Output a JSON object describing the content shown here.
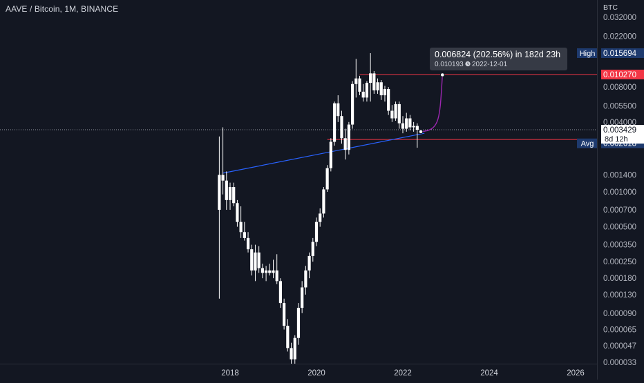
{
  "header": {
    "title": "AAVE / Bitcoin, 1M, BINANCE"
  },
  "price_axis": {
    "unit": "BTC",
    "ticks": [
      "0.032000",
      "0.022000",
      "0.015694",
      "0.010270",
      "0.008000",
      "0.005500",
      "0.004000",
      "0.003429",
      "0.002827",
      "0.002618",
      "0.001400",
      "0.001000",
      "0.000700",
      "0.000500",
      "0.000350",
      "0.000250",
      "0.000180",
      "0.000130",
      "0.000090",
      "0.000065",
      "0.000047",
      "0.000033"
    ],
    "markers": {
      "high": {
        "label": "High",
        "value": "0.015694",
        "color": "#1e3a6e"
      },
      "target": {
        "value": "0.010270",
        "color": "#f23645"
      },
      "last": {
        "value": "0.003429",
        "countdown": "8d 12h",
        "color": "#ffffff"
      },
      "support": {
        "value": "0.002827",
        "color": "#f23645"
      },
      "avg": {
        "label": "Avg",
        "value": "0.002618",
        "color": "#1e3a6e"
      }
    }
  },
  "time_axis": {
    "ticks": [
      "2018",
      "2020",
      "2022",
      "2024",
      "2026"
    ]
  },
  "projection_tooltip": {
    "line1": "0.006824 (202.56%) in 182d 23h",
    "line2_value": "0.010193",
    "line2_date": "2022-12-01",
    "clock_icon": "clock-icon"
  },
  "colors": {
    "background": "#131722",
    "candle": "#ffffff",
    "trendline": "#2962ff",
    "horizontal_line": "#f23645",
    "projection_curve": "#9c27b0"
  },
  "chart_data": {
    "type": "candlestick",
    "title": "AAVE / Bitcoin, 1M, BINANCE",
    "ylabel": "BTC",
    "y_scale": "log",
    "ylim": [
      3.3e-05,
      0.032
    ],
    "xlim": [
      "2016-06",
      "2026-06"
    ],
    "candles": [
      {
        "t": "2017-10",
        "o": 0.0007,
        "h": 0.003,
        "l": 0.00012,
        "c": 0.0014
      },
      {
        "t": "2017-11",
        "o": 0.0014,
        "h": 0.0036,
        "l": 0.00095,
        "c": 0.00125
      },
      {
        "t": "2017-12",
        "o": 0.00125,
        "h": 0.0015,
        "l": 0.0007,
        "c": 0.00085
      },
      {
        "t": "2018-01",
        "o": 0.00085,
        "h": 0.0012,
        "l": 0.0007,
        "c": 0.0011
      },
      {
        "t": "2018-02",
        "o": 0.0011,
        "h": 0.0012,
        "l": 0.00075,
        "c": 0.0008
      },
      {
        "t": "2018-03",
        "o": 0.0008,
        "h": 0.00085,
        "l": 0.0005,
        "c": 0.00055
      },
      {
        "t": "2018-04",
        "o": 0.00055,
        "h": 0.00075,
        "l": 0.0004,
        "c": 0.00045
      },
      {
        "t": "2018-05",
        "o": 0.00045,
        "h": 0.00055,
        "l": 0.00038,
        "c": 0.0004
      },
      {
        "t": "2018-06",
        "o": 0.0004,
        "h": 0.00045,
        "l": 0.0003,
        "c": 0.00032
      },
      {
        "t": "2018-07",
        "o": 0.00032,
        "h": 0.00035,
        "l": 0.00019,
        "c": 0.00021
      },
      {
        "t": "2018-08",
        "o": 0.00021,
        "h": 0.00035,
        "l": 0.00017,
        "c": 0.0003
      },
      {
        "t": "2018-09",
        "o": 0.0003,
        "h": 0.00034,
        "l": 0.0002,
        "c": 0.00022
      },
      {
        "t": "2018-10",
        "o": 0.00022,
        "h": 0.00024,
        "l": 0.00018,
        "c": 0.0002
      },
      {
        "t": "2018-11",
        "o": 0.0002,
        "h": 0.00023,
        "l": 0.00017,
        "c": 0.00021
      },
      {
        "t": "2018-12",
        "o": 0.00021,
        "h": 0.00024,
        "l": 0.00019,
        "c": 0.0002
      },
      {
        "t": "2019-01",
        "o": 0.0002,
        "h": 0.00026,
        "l": 0.00018,
        "c": 0.00021
      },
      {
        "t": "2019-02",
        "o": 0.00021,
        "h": 0.00029,
        "l": 0.00016,
        "c": 0.00017
      },
      {
        "t": "2019-03",
        "o": 0.00017,
        "h": 0.00018,
        "l": 0.0001,
        "c": 0.00011
      },
      {
        "t": "2019-04",
        "o": 0.00011,
        "h": 0.00012,
        "l": 6.5e-05,
        "c": 7e-05
      },
      {
        "t": "2019-05",
        "o": 7e-05,
        "h": 8e-05,
        "l": 4.2e-05,
        "c": 4.5e-05
      },
      {
        "t": "2019-06",
        "o": 4.5e-05,
        "h": 5e-05,
        "l": 3.3e-05,
        "c": 3.6e-05
      },
      {
        "t": "2019-07",
        "o": 3.6e-05,
        "h": 5.8e-05,
        "l": 3.3e-05,
        "c": 5.5e-05
      },
      {
        "t": "2019-08",
        "o": 5.5e-05,
        "h": 0.00011,
        "l": 4.8e-05,
        "c": 0.0001
      },
      {
        "t": "2019-09",
        "o": 0.0001,
        "h": 0.00017,
        "l": 9e-05,
        "c": 0.00015
      },
      {
        "t": "2019-10",
        "o": 0.00015,
        "h": 0.00023,
        "l": 0.00013,
        "c": 0.00021
      },
      {
        "t": "2019-11",
        "o": 0.00021,
        "h": 0.0003,
        "l": 0.00018,
        "c": 0.00028
      },
      {
        "t": "2019-12",
        "o": 0.00028,
        "h": 0.0004,
        "l": 0.00025,
        "c": 0.00037
      },
      {
        "t": "2020-01",
        "o": 0.00037,
        "h": 0.0006,
        "l": 0.00034,
        "c": 0.00055
      },
      {
        "t": "2020-02",
        "o": 0.00055,
        "h": 0.00072,
        "l": 0.0005,
        "c": 0.00065
      },
      {
        "t": "2020-03",
        "o": 0.00065,
        "h": 0.0011,
        "l": 0.0006,
        "c": 0.00105
      },
      {
        "t": "2020-04",
        "o": 0.00105,
        "h": 0.0017,
        "l": 0.001,
        "c": 0.0016
      },
      {
        "t": "2020-05",
        "o": 0.0016,
        "h": 0.0029,
        "l": 0.0015,
        "c": 0.0027
      },
      {
        "t": "2020-06",
        "o": 0.0027,
        "h": 0.006,
        "l": 0.0025,
        "c": 0.0058
      },
      {
        "t": "2020-07",
        "o": 0.0058,
        "h": 0.0068,
        "l": 0.004,
        "c": 0.0045
      },
      {
        "t": "2020-08",
        "o": 0.0045,
        "h": 0.005,
        "l": 0.0026,
        "c": 0.0029
      },
      {
        "t": "2020-09",
        "o": 0.0029,
        "h": 0.0035,
        "l": 0.0019,
        "c": 0.0023
      },
      {
        "t": "2020-10",
        "o": 0.0023,
        "h": 0.004,
        "l": 0.0021,
        "c": 0.0038
      },
      {
        "t": "2020-11",
        "o": 0.0038,
        "h": 0.009,
        "l": 0.0035,
        "c": 0.0085
      },
      {
        "t": "2020-12",
        "o": 0.0085,
        "h": 0.014,
        "l": 0.0065,
        "c": 0.0095
      },
      {
        "t": "2021-01",
        "o": 0.0095,
        "h": 0.01,
        "l": 0.0068,
        "c": 0.0073
      },
      {
        "t": "2021-02",
        "o": 0.0073,
        "h": 0.0085,
        "l": 0.006,
        "c": 0.0065
      },
      {
        "t": "2021-03",
        "o": 0.0065,
        "h": 0.009,
        "l": 0.006,
        "c": 0.0087
      },
      {
        "t": "2021-04",
        "o": 0.0087,
        "h": 0.015694,
        "l": 0.006,
        "c": 0.0105
      },
      {
        "t": "2021-05",
        "o": 0.0105,
        "h": 0.011,
        "l": 0.007,
        "c": 0.0075
      },
      {
        "t": "2021-06",
        "o": 0.0075,
        "h": 0.0095,
        "l": 0.007,
        "c": 0.0088
      },
      {
        "t": "2021-07",
        "o": 0.0088,
        "h": 0.0092,
        "l": 0.0062,
        "c": 0.0068
      },
      {
        "t": "2021-08",
        "o": 0.0068,
        "h": 0.0082,
        "l": 0.006,
        "c": 0.0077
      },
      {
        "t": "2021-09",
        "o": 0.0077,
        "h": 0.008,
        "l": 0.0046,
        "c": 0.005
      },
      {
        "t": "2021-10",
        "o": 0.005,
        "h": 0.0056,
        "l": 0.004,
        "c": 0.0043
      },
      {
        "t": "2021-11",
        "o": 0.0043,
        "h": 0.006,
        "l": 0.0041,
        "c": 0.0057
      },
      {
        "t": "2021-12",
        "o": 0.0057,
        "h": 0.006,
        "l": 0.0035,
        "c": 0.0039
      },
      {
        "t": "2022-01",
        "o": 0.0039,
        "h": 0.0045,
        "l": 0.0032,
        "c": 0.0035
      },
      {
        "t": "2022-02",
        "o": 0.0035,
        "h": 0.0048,
        "l": 0.0033,
        "c": 0.0043
      },
      {
        "t": "2022-03",
        "o": 0.0043,
        "h": 0.0046,
        "l": 0.0034,
        "c": 0.0036
      },
      {
        "t": "2022-04",
        "o": 0.0036,
        "h": 0.004,
        "l": 0.0033,
        "c": 0.0037
      },
      {
        "t": "2022-05",
        "o": 0.0037,
        "h": 0.0039,
        "l": 0.0024,
        "c": 0.003429
      }
    ],
    "trendline": [
      {
        "t": "2017-11",
        "v": 0.00145
      },
      {
        "t": "2022-07",
        "v": 0.0032
      }
    ],
    "horizontal_lines": [
      {
        "t_start": "2021-01",
        "v": 0.01027
      },
      {
        "t_start": "2020-04",
        "v": 0.002827
      }
    ],
    "current_price_line": 0.003429,
    "projection": {
      "from_t": "2022-06",
      "from_v": 0.0033,
      "to_t": "2022-12",
      "to_v": 0.010193
    }
  }
}
